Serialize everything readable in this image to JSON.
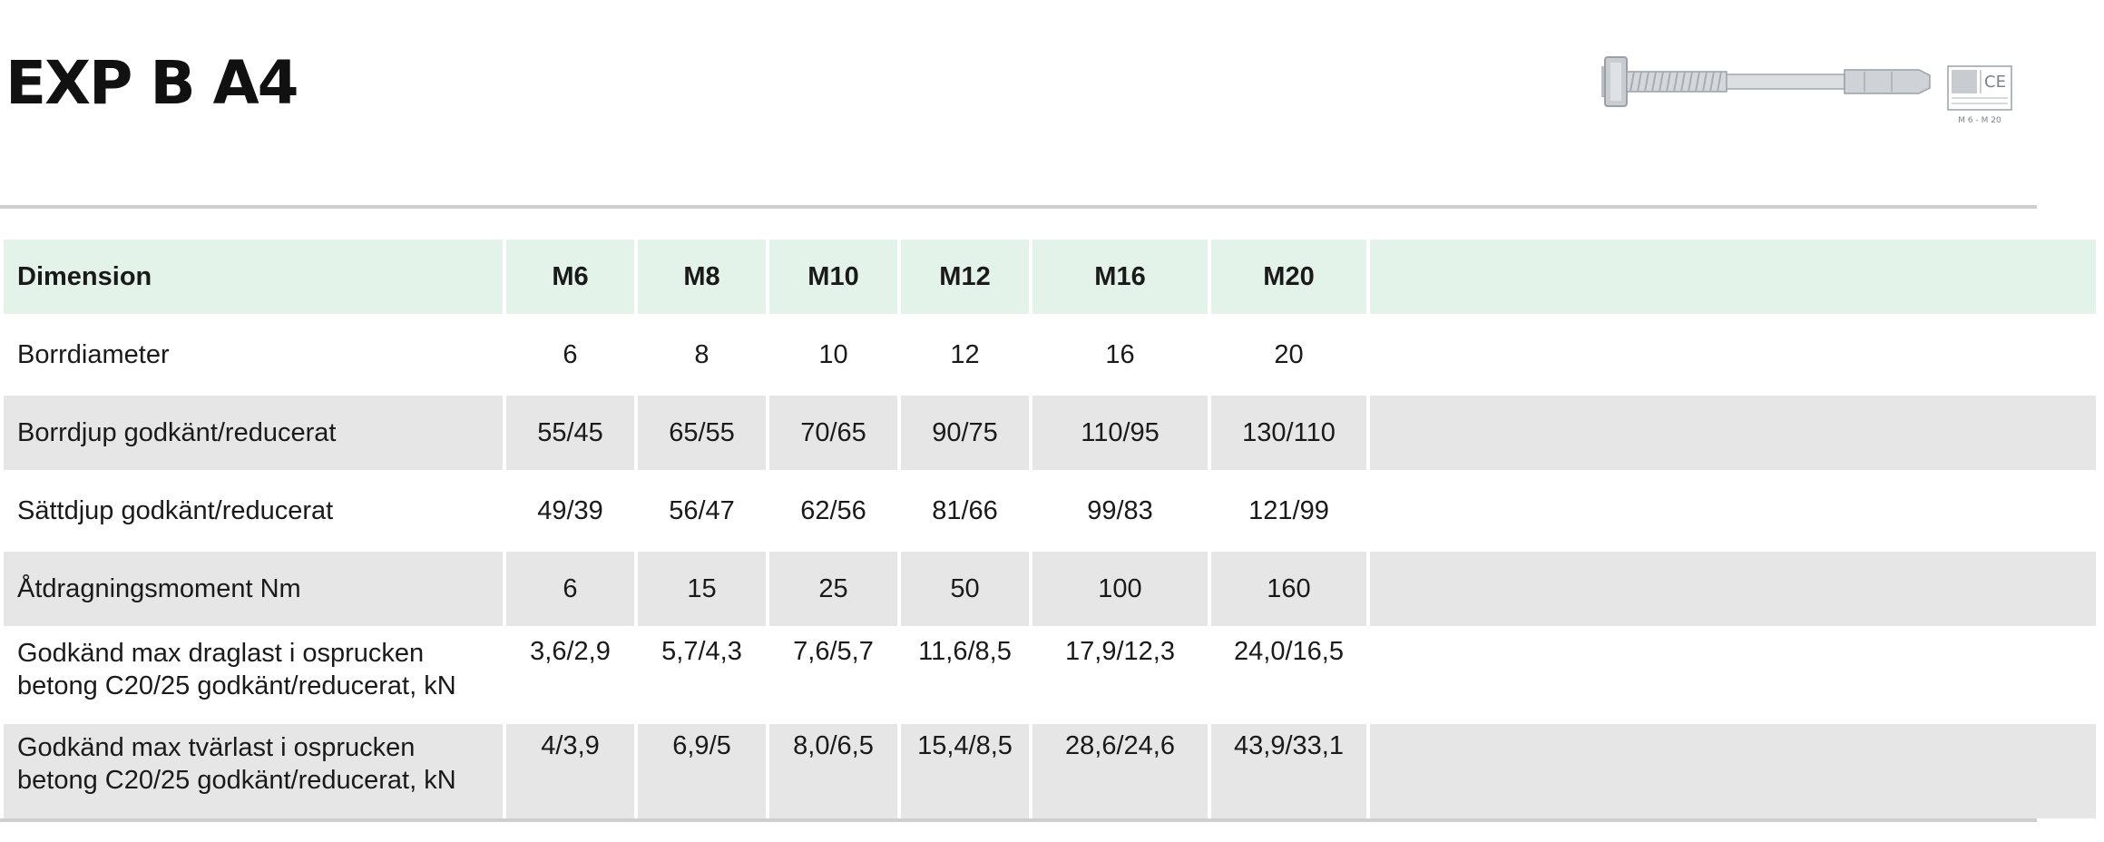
{
  "title": "EXP B A4",
  "product_image": {
    "marking_text": "M 6 - M 20",
    "ce_mark": "CE"
  },
  "table": {
    "header": [
      "Dimension",
      "M6",
      "M8",
      "M10",
      "M12",
      "M16",
      "M20"
    ],
    "rows": [
      {
        "label": "Borrdiameter",
        "values": [
          "6",
          "8",
          "10",
          "12",
          "16",
          "20"
        ]
      },
      {
        "label": "Borrdjup godkänt/reducerat",
        "values": [
          "55/45",
          "65/55",
          "70/65",
          "90/75",
          "110/95",
          "130/110"
        ]
      },
      {
        "label": "Sättdjup godkänt/reducerat",
        "values": [
          "49/39",
          "56/47",
          "62/56",
          "81/66",
          "99/83",
          "121/99"
        ]
      },
      {
        "label": "Åtdragningsmoment Nm",
        "values": [
          "6",
          "15",
          "25",
          "50",
          "100",
          "160"
        ]
      },
      {
        "label": "Godkänd max draglast i osprucken betong C20/25 godkänt/reducerat, kN",
        "values": [
          "3,6/2,9",
          "5,7/4,3",
          "7,6/5,7",
          "11,6/8,5",
          "17,9/12,3",
          "24,0/16,5"
        ]
      },
      {
        "label": "Godkänd max tvärlast i osprucken betong C20/25 godkänt/reducerat, kN",
        "values": [
          "4/3,9",
          "6,9/5",
          "8,0/6,5",
          "15,4/8,5",
          "28,6/24,6",
          "43,9/33,1"
        ]
      }
    ]
  }
}
